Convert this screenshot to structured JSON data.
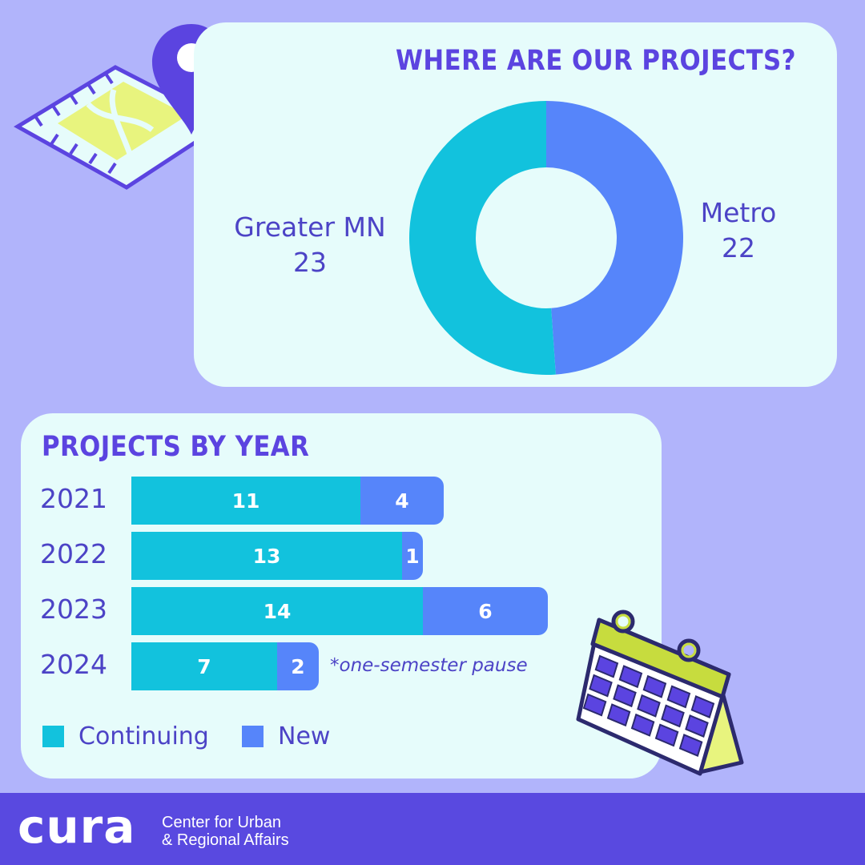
{
  "colors": {
    "background": "#b1b4fb",
    "panel": "#e6fcfb",
    "continuing": "#12c2dd",
    "new": "#5685fa",
    "accent": "#5b44e0",
    "text": "#4c43c6",
    "footer": "#5949e0"
  },
  "chart_data": [
    {
      "type": "pie",
      "title": "WHERE ARE OUR PROJECTS?",
      "donut": true,
      "slices": [
        {
          "label": "Greater MN",
          "value": 23,
          "color": "#12c2dd"
        },
        {
          "label": "Metro",
          "value": 22,
          "color": "#5685fa"
        }
      ]
    },
    {
      "type": "bar",
      "orientation": "horizontal",
      "stacked": true,
      "title": "PROJECTS BY YEAR",
      "categories": [
        "2021",
        "2022",
        "2023",
        "2024"
      ],
      "series": [
        {
          "name": "Continuing",
          "values": [
            11,
            13,
            14,
            7
          ],
          "color": "#12c2dd"
        },
        {
          "name": "New",
          "values": [
            4,
            1,
            6,
            2
          ],
          "color": "#5685fa"
        }
      ],
      "annotations": [
        {
          "category": "2024",
          "text": "*one-semester pause"
        }
      ],
      "legend": "bottom-left",
      "grid": false
    }
  ],
  "footer": {
    "logo_text": "cura",
    "org_line1": "Center for Urban",
    "org_line2": "& Regional Affairs"
  },
  "icons": [
    "map-pin-icon",
    "calendar-icon"
  ]
}
